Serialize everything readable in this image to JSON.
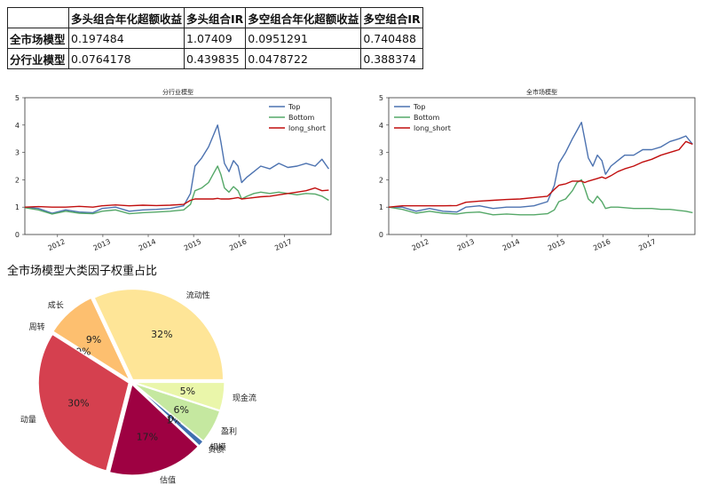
{
  "table": {
    "headers": [
      "",
      "多头组合年化超额收益",
      "多头组合IR",
      "多空组合年化超额收益",
      "多空组合IR"
    ],
    "rows": [
      {
        "label": "全市场模型",
        "values": [
          "0.197484",
          "1.07409",
          "0.0951291",
          "0.740488"
        ]
      },
      {
        "label": "分行业模型",
        "values": [
          "0.0764178",
          "0.439835",
          "0.0478722",
          "0.388374"
        ]
      }
    ]
  },
  "chart_data": [
    {
      "type": "line",
      "title": "分行业模型",
      "xlabel": "",
      "ylabel": "",
      "x_ticks": [
        "2012",
        "2013",
        "2014",
        "2015",
        "2016",
        "2017"
      ],
      "y_ticks": [
        "0",
        "1",
        "2",
        "3",
        "4",
        "5"
      ],
      "xlim": [
        2011.3,
        2018.05
      ],
      "ylim": [
        0,
        5
      ],
      "legend": "top-right",
      "series": [
        {
          "name": "Top",
          "color": "#4c72b0",
          "points": [
            [
              2011.3,
              1.0
            ],
            [
              2011.6,
              0.95
            ],
            [
              2011.9,
              0.78
            ],
            [
              2012.2,
              0.9
            ],
            [
              2012.5,
              0.82
            ],
            [
              2012.8,
              0.8
            ],
            [
              2013.0,
              0.95
            ],
            [
              2013.3,
              1.0
            ],
            [
              2013.6,
              0.85
            ],
            [
              2013.9,
              0.9
            ],
            [
              2014.2,
              0.92
            ],
            [
              2014.5,
              0.95
            ],
            [
              2014.8,
              1.05
            ],
            [
              2014.95,
              1.5
            ],
            [
              2015.05,
              2.5
            ],
            [
              2015.2,
              2.8
            ],
            [
              2015.35,
              3.2
            ],
            [
              2015.45,
              3.6
            ],
            [
              2015.55,
              4.0
            ],
            [
              2015.62,
              3.4
            ],
            [
              2015.7,
              2.6
            ],
            [
              2015.8,
              2.3
            ],
            [
              2015.9,
              2.7
            ],
            [
              2016.0,
              2.5
            ],
            [
              2016.08,
              1.9
            ],
            [
              2016.2,
              2.1
            ],
            [
              2016.35,
              2.3
            ],
            [
              2016.5,
              2.5
            ],
            [
              2016.7,
              2.4
            ],
            [
              2016.9,
              2.6
            ],
            [
              2017.1,
              2.45
            ],
            [
              2017.3,
              2.5
            ],
            [
              2017.5,
              2.6
            ],
            [
              2017.7,
              2.5
            ],
            [
              2017.85,
              2.75
            ],
            [
              2018.0,
              2.4
            ]
          ]
        },
        {
          "name": "Bottom",
          "color": "#55a868",
          "points": [
            [
              2011.3,
              0.98
            ],
            [
              2011.6,
              0.9
            ],
            [
              2011.9,
              0.75
            ],
            [
              2012.2,
              0.85
            ],
            [
              2012.5,
              0.78
            ],
            [
              2012.8,
              0.76
            ],
            [
              2013.0,
              0.85
            ],
            [
              2013.3,
              0.9
            ],
            [
              2013.6,
              0.76
            ],
            [
              2013.9,
              0.8
            ],
            [
              2014.2,
              0.82
            ],
            [
              2014.5,
              0.85
            ],
            [
              2014.8,
              0.9
            ],
            [
              2014.95,
              1.1
            ],
            [
              2015.05,
              1.6
            ],
            [
              2015.2,
              1.7
            ],
            [
              2015.35,
              1.9
            ],
            [
              2015.45,
              2.2
            ],
            [
              2015.55,
              2.5
            ],
            [
              2015.62,
              2.2
            ],
            [
              2015.7,
              1.7
            ],
            [
              2015.8,
              1.55
            ],
            [
              2015.9,
              1.75
            ],
            [
              2016.0,
              1.6
            ],
            [
              2016.08,
              1.3
            ],
            [
              2016.2,
              1.4
            ],
            [
              2016.35,
              1.5
            ],
            [
              2016.5,
              1.55
            ],
            [
              2016.7,
              1.5
            ],
            [
              2016.9,
              1.55
            ],
            [
              2017.1,
              1.5
            ],
            [
              2017.3,
              1.45
            ],
            [
              2017.5,
              1.5
            ],
            [
              2017.7,
              1.48
            ],
            [
              2017.85,
              1.4
            ],
            [
              2018.0,
              1.25
            ]
          ]
        },
        {
          "name": "long_short",
          "color": "#c10e0e",
          "points": [
            [
              2011.3,
              1.0
            ],
            [
              2011.6,
              1.02
            ],
            [
              2011.9,
              1.0
            ],
            [
              2012.2,
              1.0
            ],
            [
              2012.5,
              1.03
            ],
            [
              2012.8,
              1.0
            ],
            [
              2013.0,
              1.05
            ],
            [
              2013.3,
              1.08
            ],
            [
              2013.6,
              1.05
            ],
            [
              2013.9,
              1.07
            ],
            [
              2014.2,
              1.06
            ],
            [
              2014.5,
              1.07
            ],
            [
              2014.8,
              1.1
            ],
            [
              2014.95,
              1.25
            ],
            [
              2015.05,
              1.3
            ],
            [
              2015.2,
              1.3
            ],
            [
              2015.35,
              1.3
            ],
            [
              2015.45,
              1.3
            ],
            [
              2015.55,
              1.32
            ],
            [
              2015.62,
              1.3
            ],
            [
              2015.7,
              1.3
            ],
            [
              2015.8,
              1.3
            ],
            [
              2015.9,
              1.32
            ],
            [
              2016.0,
              1.35
            ],
            [
              2016.08,
              1.3
            ],
            [
              2016.2,
              1.32
            ],
            [
              2016.35,
              1.35
            ],
            [
              2016.5,
              1.38
            ],
            [
              2016.7,
              1.4
            ],
            [
              2016.9,
              1.45
            ],
            [
              2017.1,
              1.5
            ],
            [
              2017.3,
              1.55
            ],
            [
              2017.5,
              1.6
            ],
            [
              2017.7,
              1.7
            ],
            [
              2017.85,
              1.6
            ],
            [
              2018.0,
              1.62
            ]
          ]
        }
      ]
    },
    {
      "type": "line",
      "title": "全市场模型",
      "xlabel": "",
      "ylabel": "",
      "x_ticks": [
        "2012",
        "2013",
        "2014",
        "2015",
        "2016",
        "2017"
      ],
      "y_ticks": [
        "0",
        "1",
        "2",
        "3",
        "4",
        "5"
      ],
      "xlim": [
        2011.3,
        2018.05
      ],
      "ylim": [
        0,
        5
      ],
      "legend": "top-left",
      "series": [
        {
          "name": "Top",
          "color": "#4c72b0",
          "points": [
            [
              2011.3,
              1.0
            ],
            [
              2011.6,
              1.0
            ],
            [
              2011.9,
              0.85
            ],
            [
              2012.2,
              0.95
            ],
            [
              2012.5,
              0.85
            ],
            [
              2012.8,
              0.82
            ],
            [
              2013.0,
              1.0
            ],
            [
              2013.3,
              1.05
            ],
            [
              2013.6,
              0.95
            ],
            [
              2013.9,
              1.0
            ],
            [
              2014.2,
              1.0
            ],
            [
              2014.5,
              1.05
            ],
            [
              2014.8,
              1.2
            ],
            [
              2014.95,
              1.8
            ],
            [
              2015.05,
              2.6
            ],
            [
              2015.2,
              3.0
            ],
            [
              2015.35,
              3.5
            ],
            [
              2015.45,
              3.8
            ],
            [
              2015.55,
              4.1
            ],
            [
              2015.62,
              3.5
            ],
            [
              2015.7,
              2.8
            ],
            [
              2015.8,
              2.5
            ],
            [
              2015.9,
              2.9
            ],
            [
              2016.0,
              2.7
            ],
            [
              2016.08,
              2.2
            ],
            [
              2016.2,
              2.5
            ],
            [
              2016.35,
              2.7
            ],
            [
              2016.5,
              2.9
            ],
            [
              2016.7,
              2.9
            ],
            [
              2016.9,
              3.1
            ],
            [
              2017.1,
              3.1
            ],
            [
              2017.3,
              3.2
            ],
            [
              2017.5,
              3.4
            ],
            [
              2017.7,
              3.5
            ],
            [
              2017.85,
              3.6
            ],
            [
              2018.0,
              3.3
            ]
          ]
        },
        {
          "name": "Bottom",
          "color": "#55a868",
          "points": [
            [
              2011.3,
              1.0
            ],
            [
              2011.6,
              0.92
            ],
            [
              2011.9,
              0.78
            ],
            [
              2012.2,
              0.85
            ],
            [
              2012.5,
              0.78
            ],
            [
              2012.8,
              0.75
            ],
            [
              2013.0,
              0.8
            ],
            [
              2013.3,
              0.82
            ],
            [
              2013.6,
              0.72
            ],
            [
              2013.9,
              0.75
            ],
            [
              2014.2,
              0.72
            ],
            [
              2014.5,
              0.72
            ],
            [
              2014.8,
              0.76
            ],
            [
              2014.95,
              0.9
            ],
            [
              2015.05,
              1.2
            ],
            [
              2015.2,
              1.3
            ],
            [
              2015.35,
              1.6
            ],
            [
              2015.45,
              1.9
            ],
            [
              2015.55,
              2.0
            ],
            [
              2015.62,
              1.7
            ],
            [
              2015.7,
              1.3
            ],
            [
              2015.8,
              1.15
            ],
            [
              2015.9,
              1.4
            ],
            [
              2016.0,
              1.2
            ],
            [
              2016.08,
              0.95
            ],
            [
              2016.2,
              1.0
            ],
            [
              2016.35,
              1.0
            ],
            [
              2016.5,
              0.98
            ],
            [
              2016.7,
              0.95
            ],
            [
              2016.9,
              0.95
            ],
            [
              2017.1,
              0.95
            ],
            [
              2017.3,
              0.92
            ],
            [
              2017.5,
              0.92
            ],
            [
              2017.7,
              0.88
            ],
            [
              2017.85,
              0.85
            ],
            [
              2018.0,
              0.8
            ]
          ]
        },
        {
          "name": "long_short",
          "color": "#c10e0e",
          "points": [
            [
              2011.3,
              1.0
            ],
            [
              2011.6,
              1.05
            ],
            [
              2011.9,
              1.05
            ],
            [
              2012.2,
              1.05
            ],
            [
              2012.5,
              1.05
            ],
            [
              2012.8,
              1.06
            ],
            [
              2013.0,
              1.18
            ],
            [
              2013.3,
              1.22
            ],
            [
              2013.6,
              1.25
            ],
            [
              2013.9,
              1.28
            ],
            [
              2014.2,
              1.3
            ],
            [
              2014.5,
              1.35
            ],
            [
              2014.8,
              1.4
            ],
            [
              2014.95,
              1.65
            ],
            [
              2015.05,
              1.8
            ],
            [
              2015.2,
              1.85
            ],
            [
              2015.35,
              1.95
            ],
            [
              2015.45,
              1.95
            ],
            [
              2015.55,
              1.95
            ],
            [
              2015.62,
              1.9
            ],
            [
              2015.7,
              1.95
            ],
            [
              2015.8,
              2.0
            ],
            [
              2015.9,
              2.05
            ],
            [
              2016.0,
              2.1
            ],
            [
              2016.08,
              2.05
            ],
            [
              2016.2,
              2.15
            ],
            [
              2016.35,
              2.3
            ],
            [
              2016.5,
              2.4
            ],
            [
              2016.7,
              2.5
            ],
            [
              2016.9,
              2.65
            ],
            [
              2017.1,
              2.75
            ],
            [
              2017.3,
              2.9
            ],
            [
              2017.5,
              3.0
            ],
            [
              2017.7,
              3.1
            ],
            [
              2017.85,
              3.4
            ],
            [
              2018.0,
              3.3
            ]
          ]
        }
      ]
    },
    {
      "type": "pie",
      "title": "全市场模型大类因子权重占比",
      "labels": [
        "流动性",
        "成长",
        "周转",
        "动量",
        "估值",
        "负债",
        "规模",
        "盈利",
        "现金流"
      ],
      "values": [
        32,
        9,
        0,
        30,
        17,
        1,
        0,
        6,
        5
      ],
      "pct_labels": [
        "32%",
        "9%",
        "0%",
        "30%",
        "17%",
        "1%",
        "0%",
        "6%",
        "5%"
      ],
      "colors": [
        "#fee597",
        "#fdbf6f",
        "#f46d43",
        "#d5404f",
        "#9e0142",
        "#3f6fb0",
        "#8fd0a4",
        "#c5e8a0",
        "#eaf6aa"
      ],
      "explode": true
    }
  ]
}
